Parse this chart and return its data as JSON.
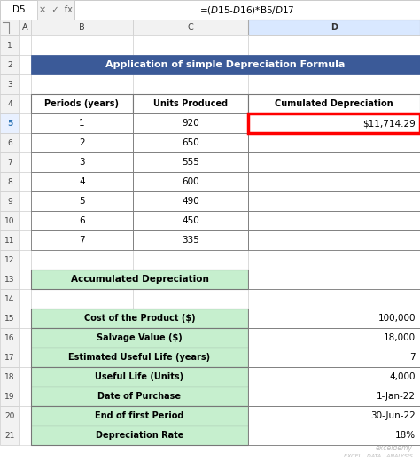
{
  "formula_bar_cell": "D5",
  "formula_bar_formula": "=($D$15-$D$16)*B5/$D$17",
  "title": "Application of simple Depreciation Formula",
  "title_bg": "#3B5A98",
  "title_color": "#FFFFFF",
  "col_headers": [
    "Periods (years)",
    "Units Produced",
    "Cumulated Depreciation"
  ],
  "table1_data": [
    [
      1,
      920,
      "$11,714.29"
    ],
    [
      2,
      650,
      ""
    ],
    [
      3,
      555,
      ""
    ],
    [
      4,
      600,
      ""
    ],
    [
      5,
      490,
      ""
    ],
    [
      6,
      450,
      ""
    ],
    [
      7,
      335,
      ""
    ]
  ],
  "highlight_border_color": "#FF0000",
  "section2_label": "Accumulated Depreciation",
  "section2_bg": "#C6EFCE",
  "params_labels": [
    "Cost of the Product ($)",
    "Salvage Value ($)",
    "Estimated Useful Life (years)",
    "Useful Life (Units)",
    "Date of Purchase",
    "End of first Period",
    "Depreciation Rate"
  ],
  "params_values": [
    "100,000",
    "18,000",
    "7",
    "4,000",
    "1-Jan-22",
    "30-Jun-22",
    "18%"
  ],
  "params_label_bg": "#C6EFCE",
  "excel_row_labels": [
    "1",
    "2",
    "3",
    "4",
    "5",
    "6",
    "7",
    "8",
    "9",
    "10",
    "11",
    "12",
    "13",
    "14",
    "15",
    "16",
    "17",
    "18",
    "19",
    "20",
    "21"
  ],
  "bg_color": "#FFFFFF",
  "selected_col_bg": "#D9E8FF",
  "selected_row_bg": "#E8F0FF",
  "watermark_line1": "exceldemy",
  "watermark_line2": "EXCEL   DATA   ANALYSIS"
}
